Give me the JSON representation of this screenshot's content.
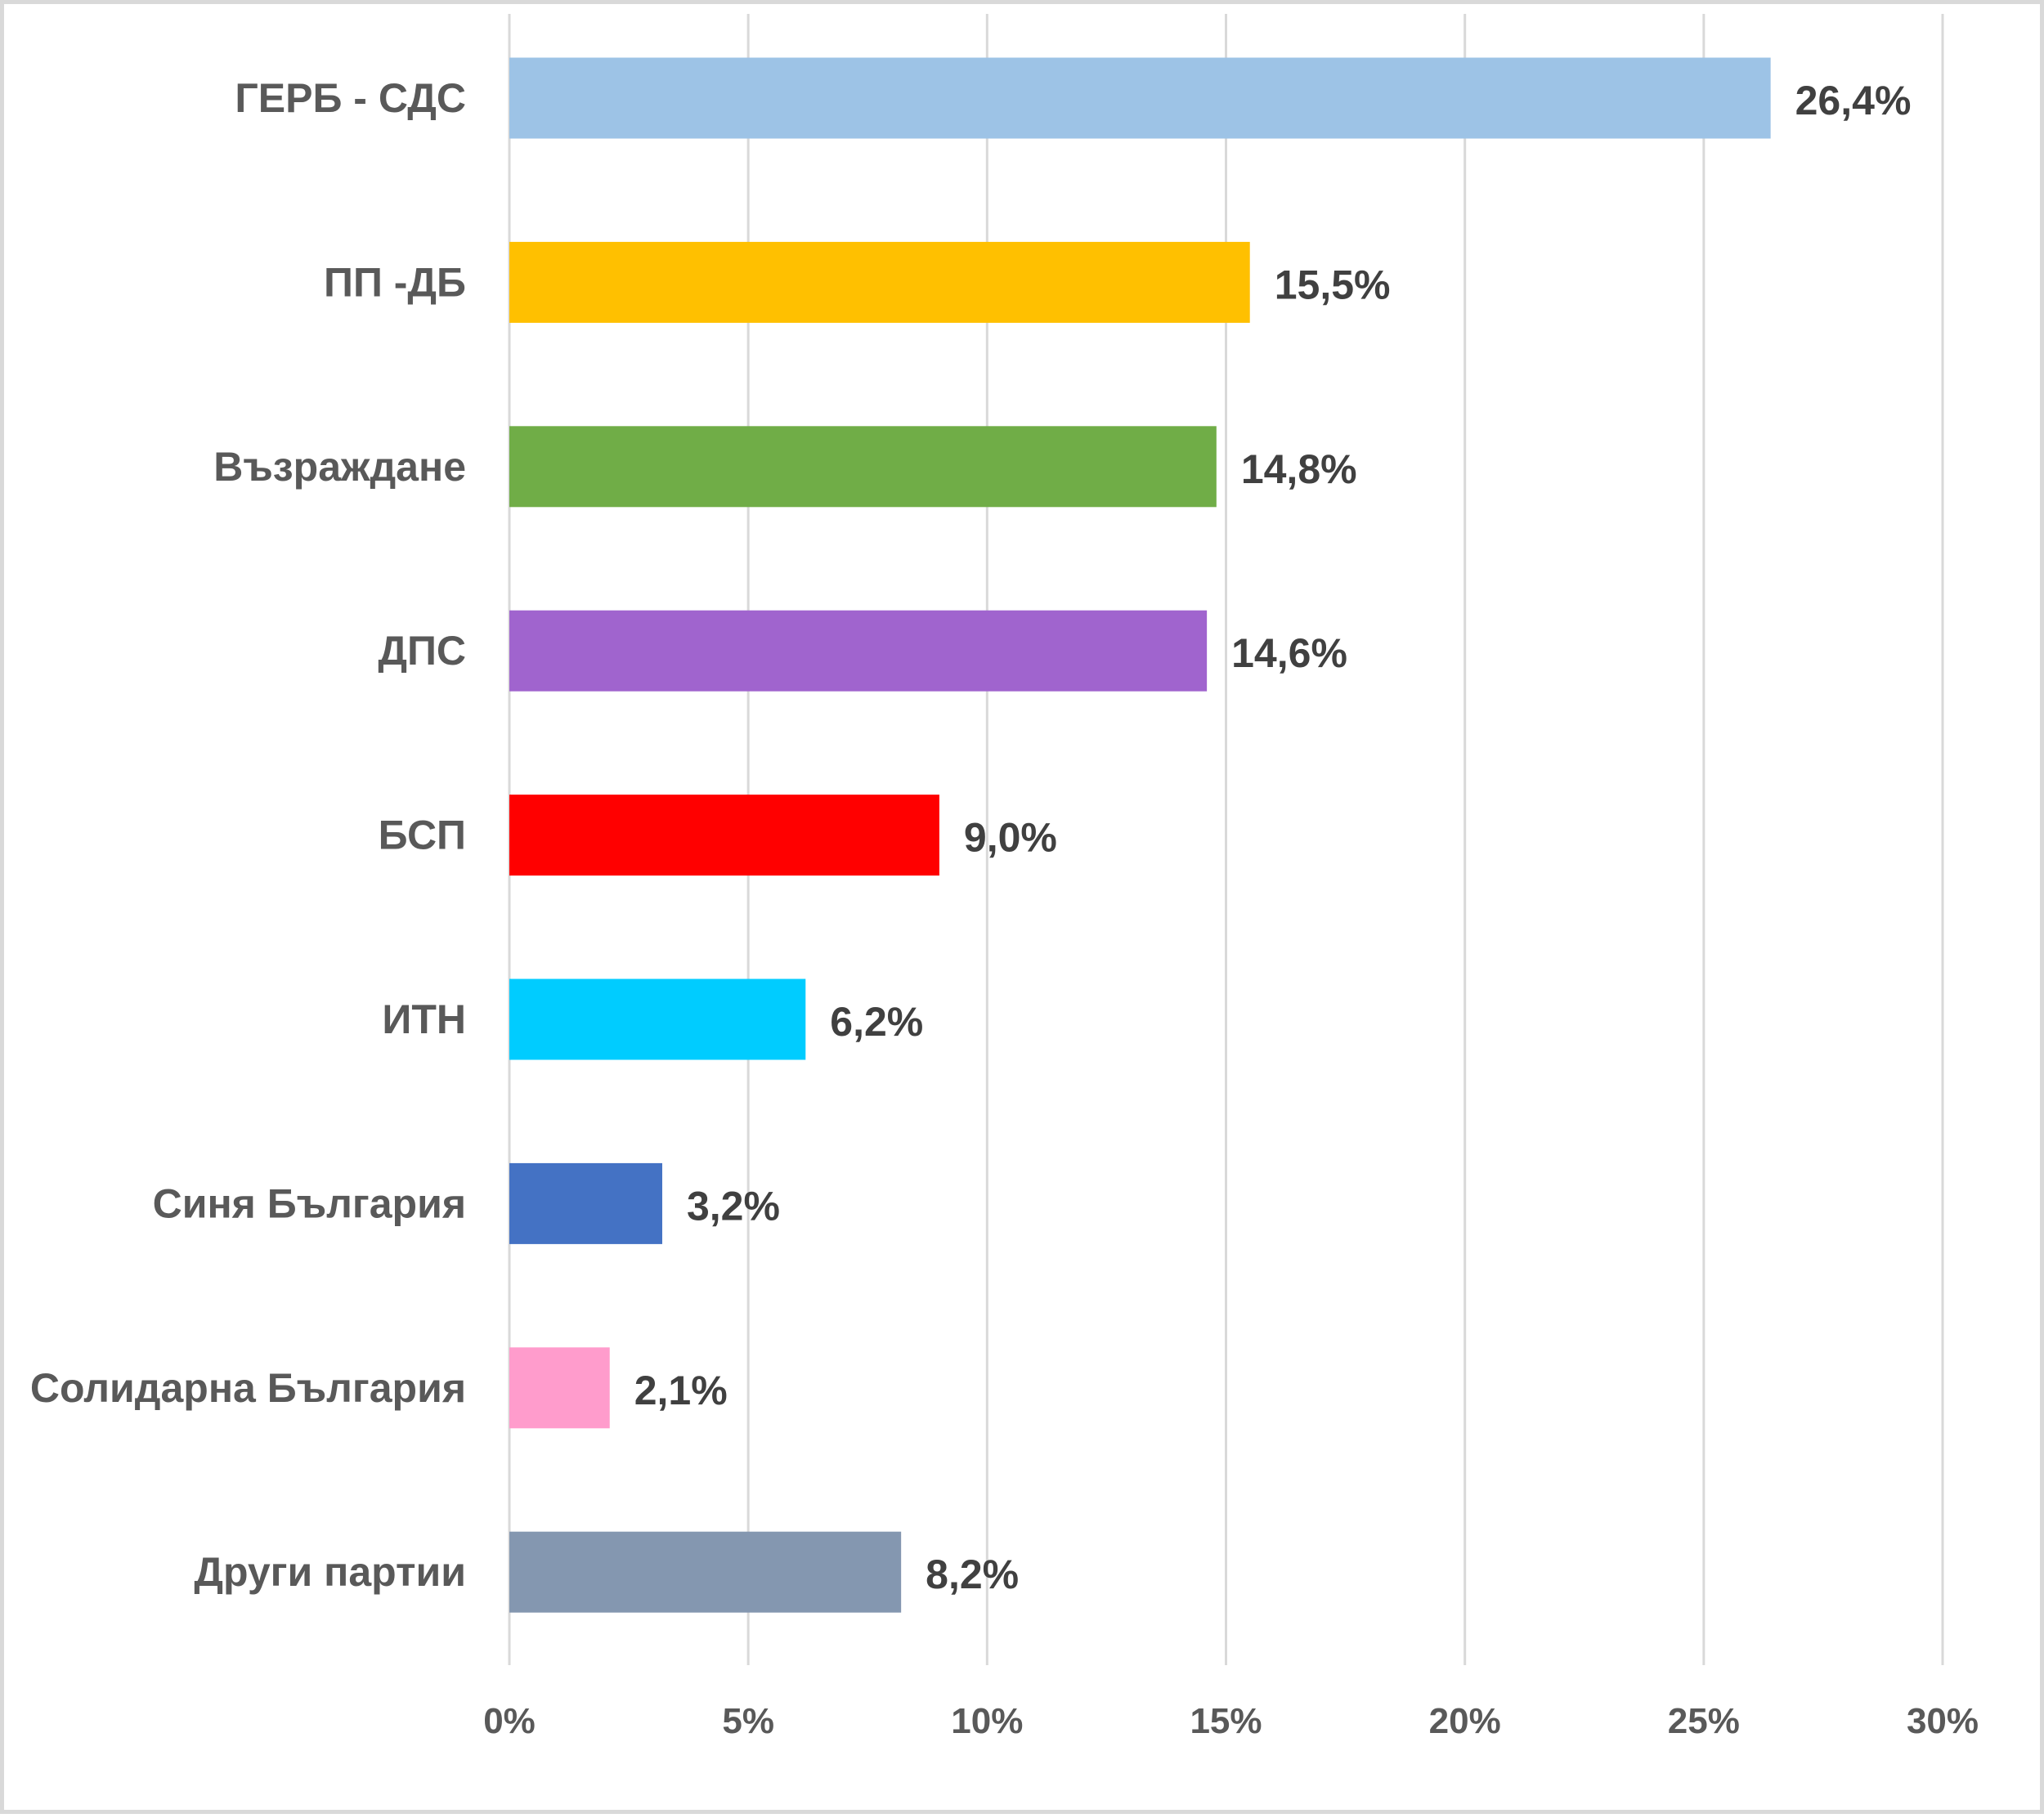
{
  "chart_data": {
    "type": "bar",
    "orientation": "horizontal",
    "title": "",
    "xlabel": "",
    "ylabel": "",
    "xlim": [
      0,
      30
    ],
    "grid": true,
    "legend": "none",
    "x_ticks": [
      "0%",
      "5%",
      "10%",
      "15%",
      "20%",
      "25%",
      "30%"
    ],
    "x_tick_values": [
      0,
      5,
      10,
      15,
      20,
      25,
      30
    ],
    "categories": [
      "ГЕРБ - СДС",
      "ПП -ДБ",
      "Възраждане",
      "ДПС",
      "БСП",
      "ИТН",
      "Синя България",
      "Солидарна България",
      "Други партии"
    ],
    "values": [
      26.4,
      15.5,
      14.8,
      14.6,
      9.0,
      6.2,
      3.2,
      2.1,
      8.2
    ],
    "value_labels": [
      "26,4%",
      "15,5%",
      "14,8%",
      "14,6%",
      "9,0%",
      "6,2%",
      "3,2%",
      "2,1%",
      "8,2%"
    ],
    "colors": [
      "#9dc3e6",
      "#ffc000",
      "#70ad47",
      "#a064ce",
      "#ff0000",
      "#00ccff",
      "#4472c4",
      "#ff9ccc",
      "#8497b0"
    ]
  }
}
